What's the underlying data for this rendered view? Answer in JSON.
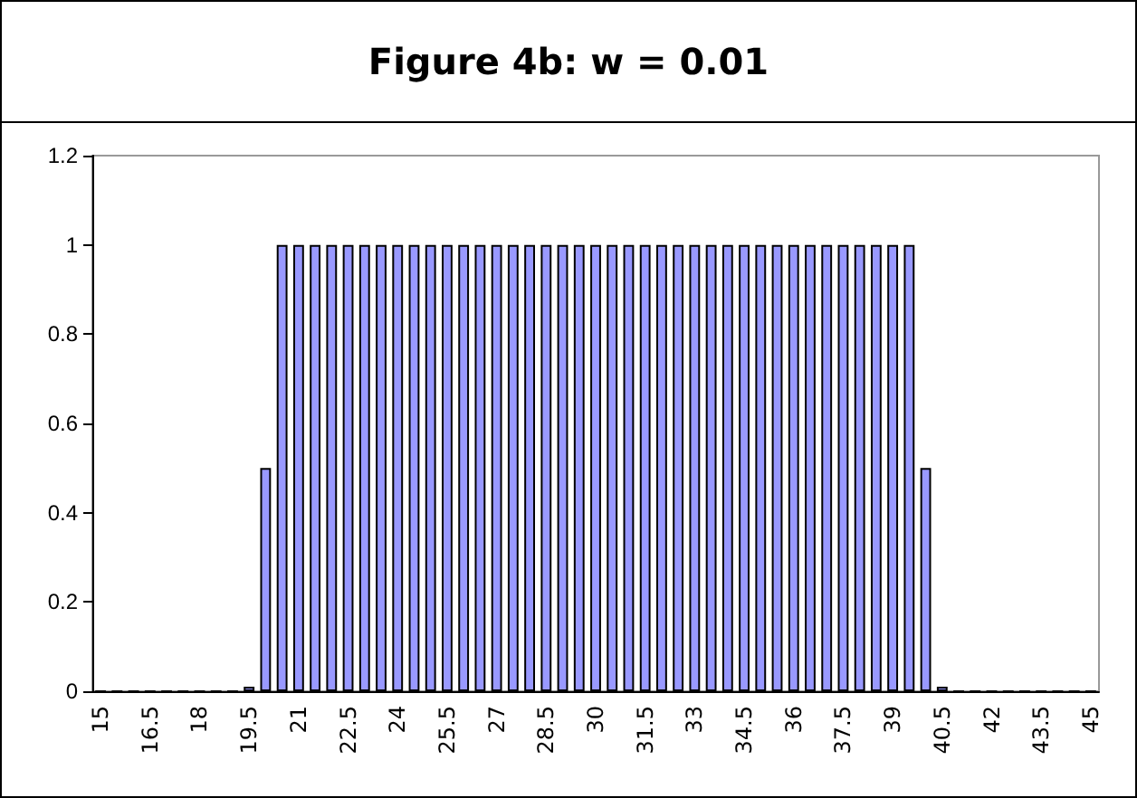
{
  "chart_data": {
    "type": "bar",
    "title": "Figure 4b: w = 0.01",
    "categories": [
      "15",
      null,
      null,
      "16.5",
      null,
      null,
      "18",
      null,
      null,
      "19.5",
      null,
      null,
      "21",
      null,
      null,
      "22.5",
      null,
      null,
      "24",
      null,
      null,
      "25.5",
      null,
      null,
      "27",
      null,
      null,
      "28.5",
      null,
      null,
      "30",
      null,
      null,
      "31.5",
      null,
      null,
      "33",
      null,
      null,
      "34.5",
      null,
      null,
      "36",
      null,
      null,
      "37.5",
      null,
      null,
      "39",
      null,
      null,
      "40.5",
      null,
      null,
      "42",
      null,
      null,
      "43.5",
      null,
      null,
      "45"
    ],
    "values": [
      0,
      0,
      0,
      0,
      0,
      0,
      0,
      0,
      0,
      0.01,
      0.5,
      1,
      1,
      1,
      1,
      1,
      1,
      1,
      1,
      1,
      1,
      1,
      1,
      1,
      1,
      1,
      1,
      1,
      1,
      1,
      1,
      1,
      1,
      1,
      1,
      1,
      1,
      1,
      1,
      1,
      1,
      1,
      1,
      1,
      1,
      1,
      1,
      1,
      1,
      1,
      0.5,
      0.01,
      0,
      0,
      0,
      0,
      0,
      0,
      0,
      0,
      0
    ],
    "color": "#9999ff",
    "ylim": [
      0,
      1.2
    ],
    "yticks": [
      0,
      0.2,
      0.4,
      0.6,
      0.8,
      1,
      1.2
    ],
    "grid": false
  }
}
